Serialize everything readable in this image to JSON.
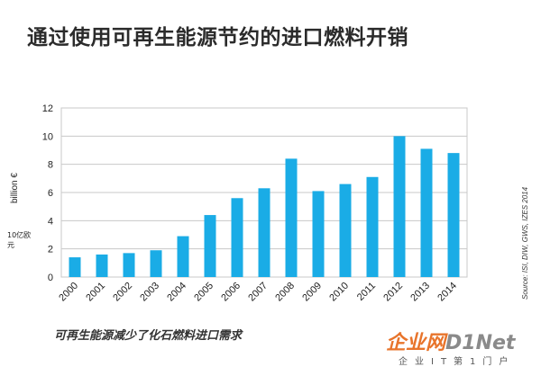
{
  "header": {
    "title": "通过使用可再生能源节约的进口燃料开销"
  },
  "caption": "可再生能源减少了化石燃料进口需求",
  "source_note": "Source: ISI, DIW, GWS, IZES 2014",
  "watermark": {
    "brand": "企业网",
    "brand_accent": "D1Net",
    "tagline": "企业IT第1门户"
  },
  "colors": {
    "bar": "#1aace6",
    "grid": "#c8c8c8",
    "brand": "#e8742b"
  },
  "chart_data": {
    "type": "bar",
    "ylabel": "billion €",
    "ylabel_secondary": "10亿欧元",
    "ylim": [
      0,
      12
    ],
    "yticks": [
      0,
      2,
      4,
      6,
      8,
      10,
      12
    ],
    "grid": true,
    "categories": [
      "2000",
      "2001",
      "2002",
      "2003",
      "2004",
      "2005",
      "2006",
      "2007",
      "2008",
      "2009",
      "2010",
      "2011",
      "2012",
      "2013",
      "2014"
    ],
    "values": [
      1.4,
      1.6,
      1.7,
      1.9,
      2.9,
      4.4,
      5.6,
      6.3,
      8.4,
      6.1,
      6.6,
      7.1,
      10.0,
      9.1,
      8.8
    ]
  }
}
